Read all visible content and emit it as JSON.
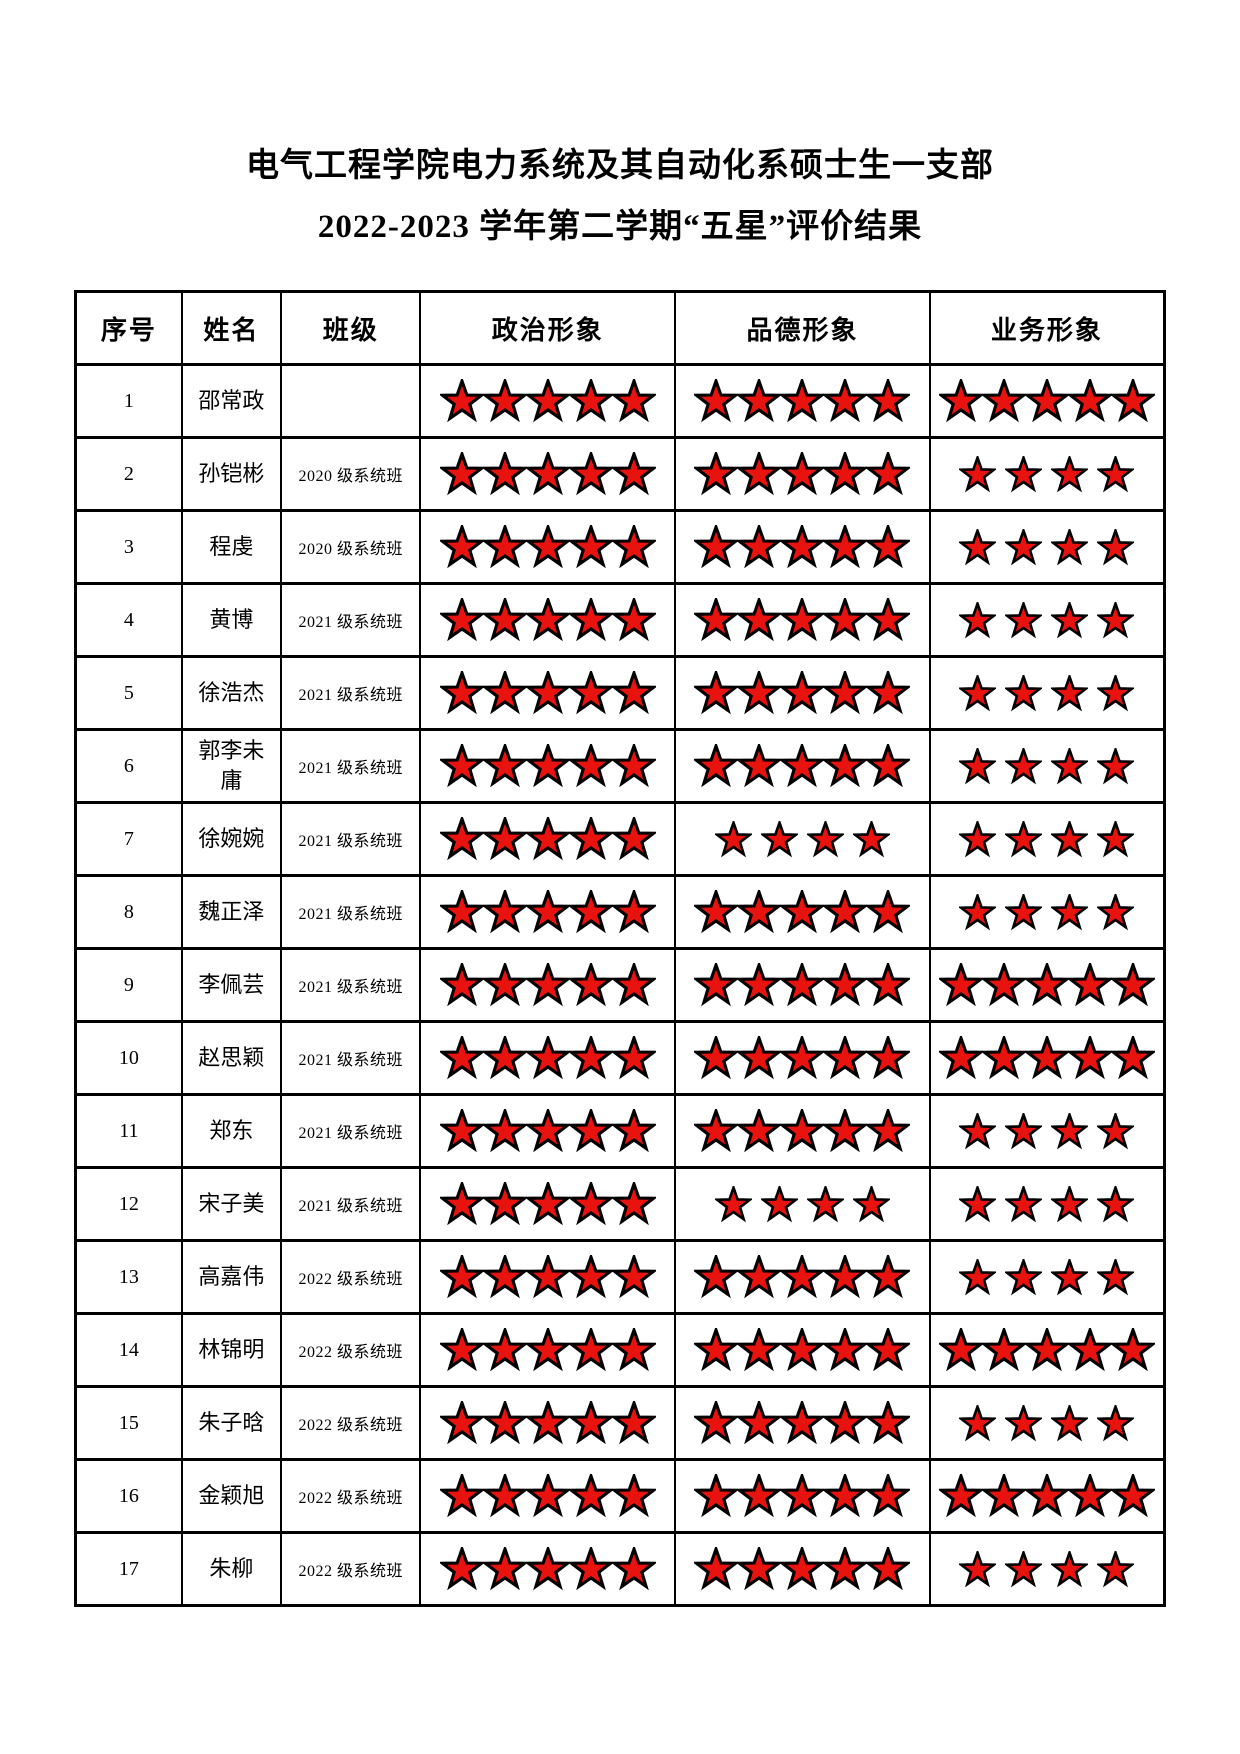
{
  "page": {
    "title_line1": "电气工程学院电力系统及其自动化系硕士生一支部",
    "title_line2": "2022-2023 学年第二学期“五星”评价结果"
  },
  "table": {
    "headers": [
      "序号",
      "姓名",
      "班级",
      "政治形象",
      "品德形象",
      "业务形象"
    ],
    "star_color": "#e8120e",
    "star_outline": "#000000",
    "rows": [
      {
        "no": "1",
        "name": "邵常政",
        "class": "",
        "political": 5,
        "moral": 5,
        "professional": 5
      },
      {
        "no": "2",
        "name": "孙铠彬",
        "class": "2020 级系统班",
        "political": 5,
        "moral": 5,
        "professional": 4
      },
      {
        "no": "3",
        "name": "程虔",
        "class": "2020 级系统班",
        "political": 5,
        "moral": 5,
        "professional": 4
      },
      {
        "no": "4",
        "name": "黄博",
        "class": "2021 级系统班",
        "political": 5,
        "moral": 5,
        "professional": 4
      },
      {
        "no": "5",
        "name": "徐浩杰",
        "class": "2021 级系统班",
        "political": 5,
        "moral": 5,
        "professional": 4
      },
      {
        "no": "6",
        "name": "郭李未庸",
        "class": "2021 级系统班",
        "political": 5,
        "moral": 5,
        "professional": 4
      },
      {
        "no": "7",
        "name": "徐婉婉",
        "class": "2021 级系统班",
        "political": 5,
        "moral": 4,
        "professional": 4
      },
      {
        "no": "8",
        "name": "魏正泽",
        "class": "2021 级系统班",
        "political": 5,
        "moral": 5,
        "professional": 4
      },
      {
        "no": "9",
        "name": "李佩芸",
        "class": "2021 级系统班",
        "political": 5,
        "moral": 5,
        "professional": 5
      },
      {
        "no": "10",
        "name": "赵思颖",
        "class": "2021 级系统班",
        "political": 5,
        "moral": 5,
        "professional": 5
      },
      {
        "no": "11",
        "name": "郑东",
        "class": "2021 级系统班",
        "political": 5,
        "moral": 5,
        "professional": 4
      },
      {
        "no": "12",
        "name": "宋子美",
        "class": "2021 级系统班",
        "political": 5,
        "moral": 4,
        "professional": 4
      },
      {
        "no": "13",
        "name": "高嘉伟",
        "class": "2022 级系统班",
        "political": 5,
        "moral": 5,
        "professional": 4
      },
      {
        "no": "14",
        "name": "林锦明",
        "class": "2022 级系统班",
        "political": 5,
        "moral": 5,
        "professional": 5
      },
      {
        "no": "15",
        "name": "朱子晗",
        "class": "2022 级系统班",
        "political": 5,
        "moral": 5,
        "professional": 4
      },
      {
        "no": "16",
        "name": "金颖旭",
        "class": "2022 级系统班",
        "political": 5,
        "moral": 5,
        "professional": 5
      },
      {
        "no": "17",
        "name": "朱柳",
        "class": "2022 级系统班",
        "political": 5,
        "moral": 5,
        "professional": 4
      }
    ]
  }
}
